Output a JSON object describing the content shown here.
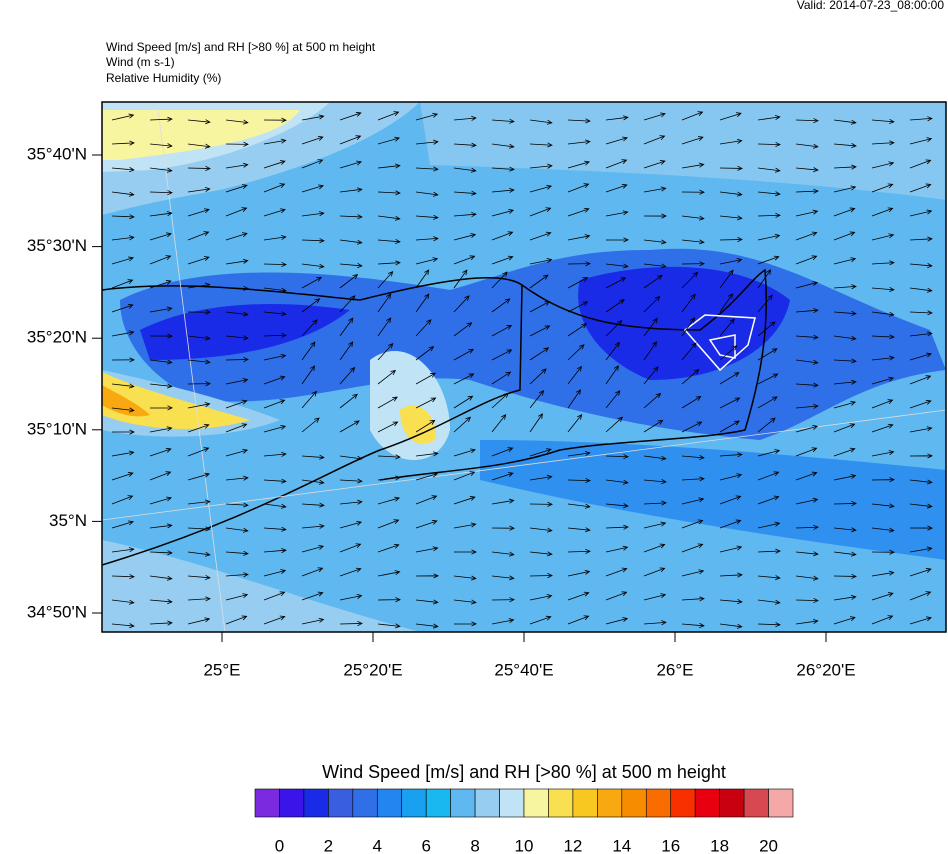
{
  "header": {
    "valid": "Valid: 2014-07-23_08:00:00",
    "titles": [
      "Wind Speed [m/s] and RH [>80 %] at 500 m height",
      "Wind   (m s-1)",
      "Relative Humidity   (%)"
    ]
  },
  "map": {
    "lat_labels": [
      "35°40'N",
      "35°30'N",
      "35°20'N",
      "35°10'N",
      "35°N",
      "34°50'N"
    ],
    "lon_labels": [
      "25°E",
      "25°20'E",
      "25°40'E",
      "26°E",
      "26°20'E"
    ]
  },
  "colorbar": {
    "title": "Wind Speed [m/s] and RH [>80 %] at 500 m height",
    "colors": [
      "#7b2ae0",
      "#3a14e8",
      "#1a2be8",
      "#3a5ee0",
      "#2f6fe8",
      "#2386f0",
      "#1aa0f0",
      "#1ab8f0",
      "#5fb8f0",
      "#96cdf0",
      "#c0e4f5",
      "#f8f5a0",
      "#f8e050",
      "#f8c820",
      "#f8a810",
      "#f88c00",
      "#f86c00",
      "#f83000",
      "#e80010",
      "#c80010",
      "#d84850",
      "#f4a8a8"
    ],
    "ticks": [
      0,
      2,
      4,
      6,
      8,
      10,
      12,
      14,
      16,
      18,
      20
    ]
  }
}
